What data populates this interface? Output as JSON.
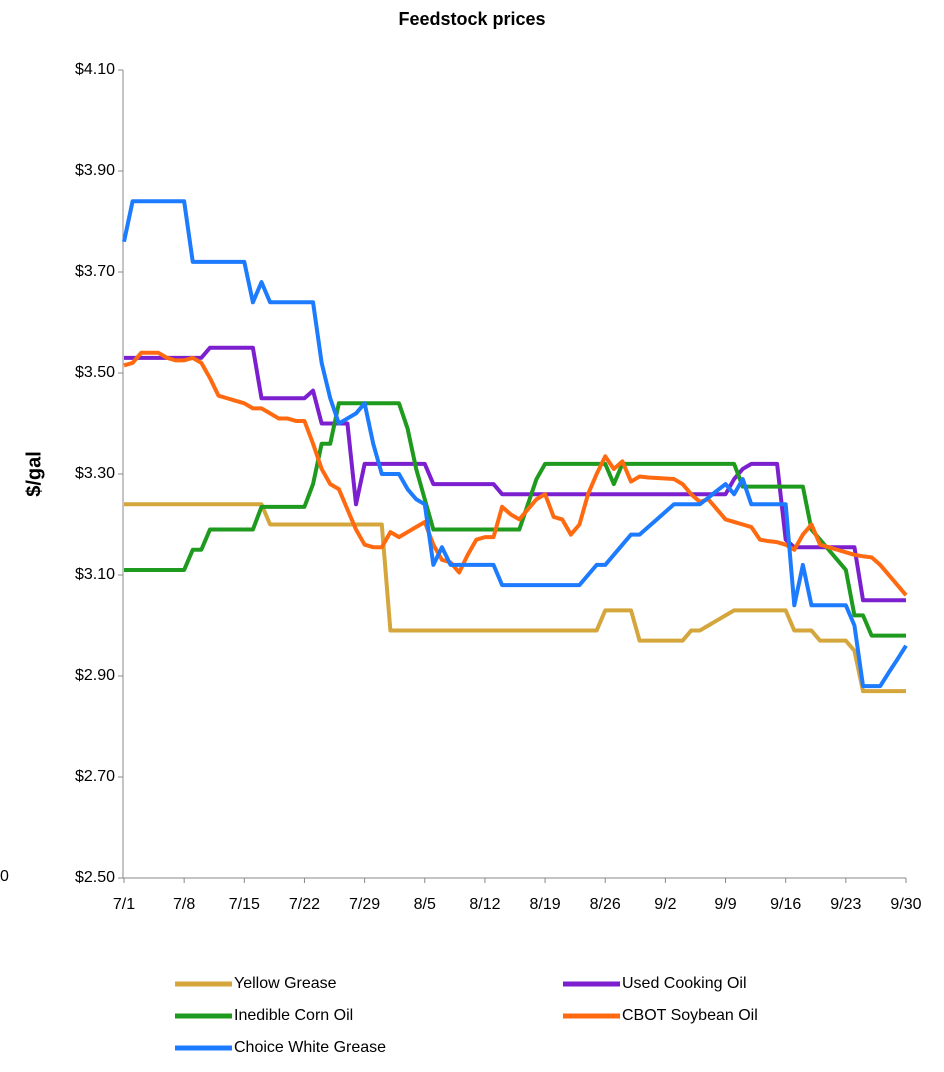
{
  "chart_data": {
    "type": "line",
    "title": "Feedstock prices",
    "y_label": "$/gal",
    "annotation": "0",
    "x": [
      "7/1",
      "7/2",
      "7/3",
      "7/4",
      "7/5",
      "7/6",
      "7/7",
      "7/8",
      "7/9",
      "7/10",
      "7/11",
      "7/12",
      "7/13",
      "7/14",
      "7/15",
      "7/16",
      "7/17",
      "7/18",
      "7/19",
      "7/20",
      "7/21",
      "7/22",
      "7/23",
      "7/24",
      "7/25",
      "7/26",
      "7/27",
      "7/28",
      "7/29",
      "7/30",
      "7/31",
      "8/1",
      "8/2",
      "8/3",
      "8/4",
      "8/5",
      "8/6",
      "8/7",
      "8/8",
      "8/9",
      "8/10",
      "8/11",
      "8/12",
      "8/13",
      "8/14",
      "8/15",
      "8/16",
      "8/17",
      "8/18",
      "8/19",
      "8/20",
      "8/21",
      "8/22",
      "8/23",
      "8/24",
      "8/25",
      "8/26",
      "8/27",
      "8/28",
      "8/29",
      "8/30",
      "8/31",
      "9/1",
      "9/2",
      "9/3",
      "9/4",
      "9/5",
      "9/6",
      "9/7",
      "9/8",
      "9/9",
      "9/10",
      "9/11",
      "9/12",
      "9/13",
      "9/14",
      "9/15",
      "9/16",
      "9/17",
      "9/18",
      "9/19",
      "9/20",
      "9/21",
      "9/22",
      "9/23",
      "9/24",
      "9/25",
      "9/26",
      "9/27",
      "9/28",
      "9/29",
      "9/30"
    ],
    "xticks": [
      "7/1",
      "7/8",
      "7/15",
      "7/22",
      "7/29",
      "8/5",
      "8/12",
      "8/19",
      "8/26",
      "9/2",
      "9/9",
      "9/16",
      "9/23",
      "9/30"
    ],
    "ylim": [
      2.5,
      4.1
    ],
    "yticks": [
      {
        "value": 2.5,
        "label": "$2.50"
      },
      {
        "value": 2.7,
        "label": "$2.70"
      },
      {
        "value": 2.9,
        "label": "$2.90"
      },
      {
        "value": 3.1,
        "label": "$3.10"
      },
      {
        "value": 3.3,
        "label": "$3.30"
      },
      {
        "value": 3.5,
        "label": "$3.50"
      },
      {
        "value": 3.7,
        "label": "$3.70"
      },
      {
        "value": 3.9,
        "label": "$3.90"
      },
      {
        "value": 4.1,
        "label": "$4.10"
      }
    ],
    "grid": false,
    "series": [
      {
        "name": "Yellow Grease",
        "color": "#D4A63C",
        "values": [
          3.24,
          3.24,
          3.24,
          3.24,
          3.24,
          3.24,
          3.24,
          3.24,
          3.24,
          3.24,
          3.24,
          3.24,
          3.24,
          3.24,
          3.24,
          3.24,
          3.24,
          3.2,
          3.2,
          3.2,
          3.2,
          3.2,
          3.2,
          3.2,
          3.2,
          3.2,
          3.2,
          3.2,
          3.2,
          3.2,
          3.2,
          2.99,
          2.99,
          2.99,
          2.99,
          2.99,
          2.99,
          2.99,
          2.99,
          2.99,
          2.99,
          2.99,
          2.99,
          2.99,
          2.99,
          2.99,
          2.99,
          2.99,
          2.99,
          2.99,
          2.99,
          2.99,
          2.99,
          2.99,
          2.99,
          2.99,
          3.03,
          3.03,
          3.03,
          3.03,
          2.97,
          2.97,
          2.97,
          2.97,
          2.97,
          2.97,
          2.99,
          2.99,
          3.0,
          3.01,
          3.02,
          3.03,
          3.03,
          3.03,
          3.03,
          3.03,
          3.03,
          3.03,
          2.99,
          2.99,
          2.99,
          2.97,
          2.97,
          2.97,
          2.97,
          2.95,
          2.87,
          2.87,
          2.87,
          2.87,
          2.87,
          2.87
        ]
      },
      {
        "name": "Used Cooking Oil",
        "color": "#7B1FCF",
        "values": [
          3.53,
          3.53,
          3.53,
          3.53,
          3.53,
          3.53,
          3.53,
          3.53,
          3.53,
          3.53,
          3.55,
          3.55,
          3.55,
          3.55,
          3.55,
          3.55,
          3.45,
          3.45,
          3.45,
          3.45,
          3.45,
          3.45,
          3.465,
          3.4,
          3.4,
          3.4,
          3.4,
          3.24,
          3.32,
          3.32,
          3.32,
          3.32,
          3.32,
          3.32,
          3.32,
          3.32,
          3.28,
          3.28,
          3.28,
          3.28,
          3.28,
          3.28,
          3.28,
          3.28,
          3.26,
          3.26,
          3.26,
          3.26,
          3.26,
          3.26,
          3.26,
          3.26,
          3.26,
          3.26,
          3.26,
          3.26,
          3.26,
          3.26,
          3.26,
          3.26,
          3.26,
          3.26,
          3.26,
          3.26,
          3.26,
          3.26,
          3.26,
          3.26,
          3.26,
          3.26,
          3.26,
          3.29,
          3.31,
          3.32,
          3.32,
          3.32,
          3.32,
          3.17,
          3.155,
          3.155,
          3.155,
          3.155,
          3.155,
          3.155,
          3.155,
          3.155,
          3.05,
          3.05,
          3.05,
          3.05,
          3.05,
          3.05
        ]
      },
      {
        "name": "Inedible Corn Oil",
        "color": "#1E9A1E",
        "values": [
          3.11,
          3.11,
          3.11,
          3.11,
          3.11,
          3.11,
          3.11,
          3.11,
          3.15,
          3.15,
          3.19,
          3.19,
          3.19,
          3.19,
          3.19,
          3.19,
          3.235,
          3.235,
          3.235,
          3.235,
          3.235,
          3.235,
          3.28,
          3.36,
          3.36,
          3.44,
          3.44,
          3.44,
          3.44,
          3.44,
          3.44,
          3.44,
          3.44,
          3.39,
          3.31,
          3.25,
          3.19,
          3.19,
          3.19,
          3.19,
          3.19,
          3.19,
          3.19,
          3.19,
          3.19,
          3.19,
          3.19,
          3.24,
          3.29,
          3.32,
          3.32,
          3.32,
          3.32,
          3.32,
          3.32,
          3.32,
          3.32,
          3.28,
          3.32,
          3.32,
          3.32,
          3.32,
          3.32,
          3.32,
          3.32,
          3.32,
          3.32,
          3.32,
          3.32,
          3.32,
          3.32,
          3.32,
          3.275,
          3.275,
          3.275,
          3.275,
          3.275,
          3.275,
          3.275,
          3.275,
          3.19,
          3.17,
          3.15,
          3.13,
          3.11,
          3.02,
          3.02,
          2.98,
          2.98,
          2.98,
          2.98,
          2.98
        ]
      },
      {
        "name": "CBOT Soybean Oil",
        "color": "#FF6A10",
        "values": [
          3.515,
          3.52,
          3.54,
          3.54,
          3.54,
          3.53,
          3.525,
          3.525,
          3.53,
          3.52,
          3.49,
          3.455,
          3.45,
          3.445,
          3.44,
          3.43,
          3.43,
          3.42,
          3.41,
          3.41,
          3.405,
          3.405,
          3.36,
          3.31,
          3.28,
          3.27,
          3.23,
          3.19,
          3.16,
          3.155,
          3.155,
          3.185,
          3.175,
          3.185,
          3.195,
          3.205,
          3.16,
          3.13,
          3.125,
          3.105,
          3.14,
          3.17,
          3.175,
          3.175,
          3.235,
          3.22,
          3.21,
          3.23,
          3.25,
          3.26,
          3.215,
          3.21,
          3.18,
          3.2,
          3.26,
          3.3,
          3.335,
          3.31,
          3.325,
          3.285,
          3.295,
          3.293,
          3.292,
          3.291,
          3.29,
          3.28,
          3.26,
          3.245,
          3.25,
          3.23,
          3.21,
          3.205,
          3.2,
          3.195,
          3.17,
          3.167,
          3.165,
          3.16,
          3.15,
          3.18,
          3.2,
          3.16,
          3.155,
          3.15,
          3.145,
          3.14,
          3.137,
          3.135,
          3.12,
          3.1,
          3.08,
          3.06
        ]
      },
      {
        "name": "Choice White Grease",
        "color": "#1C7BFF",
        "values": [
          3.76,
          3.84,
          3.84,
          3.84,
          3.84,
          3.84,
          3.84,
          3.84,
          3.72,
          3.72,
          3.72,
          3.72,
          3.72,
          3.72,
          3.72,
          3.64,
          3.68,
          3.64,
          3.64,
          3.64,
          3.64,
          3.64,
          3.64,
          3.52,
          3.45,
          3.4,
          3.41,
          3.42,
          3.44,
          3.36,
          3.3,
          3.3,
          3.3,
          3.27,
          3.25,
          3.24,
          3.12,
          3.155,
          3.12,
          3.12,
          3.12,
          3.12,
          3.12,
          3.12,
          3.08,
          3.08,
          3.08,
          3.08,
          3.08,
          3.08,
          3.08,
          3.08,
          3.08,
          3.08,
          3.1,
          3.12,
          3.12,
          3.14,
          3.16,
          3.18,
          3.18,
          3.195,
          3.21,
          3.225,
          3.24,
          3.24,
          3.24,
          3.24,
          3.253,
          3.267,
          3.28,
          3.26,
          3.29,
          3.24,
          3.24,
          3.24,
          3.24,
          3.24,
          3.04,
          3.12,
          3.04,
          3.04,
          3.04,
          3.04,
          3.04,
          3.0,
          2.88,
          2.88,
          2.88,
          2.907,
          2.933,
          2.96
        ]
      }
    ]
  }
}
